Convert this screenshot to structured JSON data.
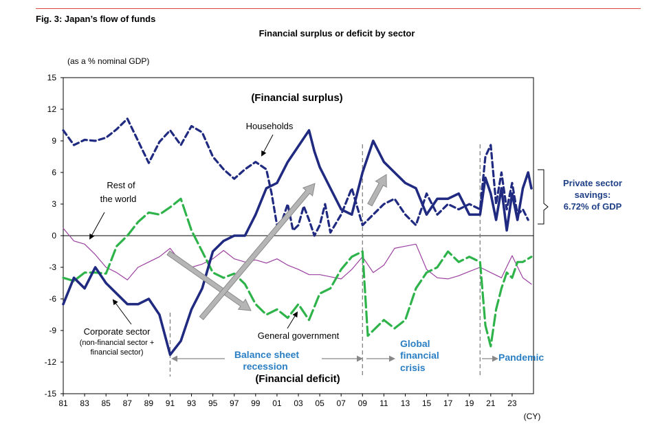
{
  "figure_title": "Fig. 3: Japan’s flow of funds",
  "chart_data": {
    "type": "line",
    "title": "Financial surplus or deficit by sector",
    "unit_label": "(as a % nominal GDP)",
    "xlabel": "(CY)",
    "ylim": [
      -15,
      15
    ],
    "xlim": [
      1981,
      2025
    ],
    "y_ticks": [
      "15",
      "12",
      "9",
      "6",
      "3",
      "0",
      "-3",
      "-6",
      "-9",
      "-12",
      "-15"
    ],
    "x_ticks": [
      "81",
      "83",
      "85",
      "87",
      "89",
      "91",
      "93",
      "95",
      "97",
      "99",
      "01",
      "03",
      "05",
      "07",
      "09",
      "11",
      "13",
      "15",
      "17",
      "19",
      "21",
      "23"
    ],
    "grid": false,
    "series": [
      {
        "name": "Households",
        "color": "#1f2a80",
        "style": "dashed",
        "x": [
          1981,
          1982,
          1983,
          1984,
          1985,
          1986,
          1987,
          1988,
          1989,
          1990,
          1991,
          1992,
          1993,
          1994,
          1995,
          1996,
          1997,
          1998,
          1999,
          2000,
          2000.5,
          2001,
          2001.5,
          2002,
          2002.5,
          2003,
          2003.5,
          2004,
          2004.5,
          2005,
          2005.5,
          2006,
          2007,
          2008,
          2009,
          2010,
          2011,
          2012,
          2013,
          2014,
          2015,
          2016,
          2017,
          2018,
          2019,
          2020,
          2020.5,
          2021,
          2021.5,
          2022,
          2022.5,
          2023,
          2023.5,
          2024,
          2024.5
        ],
        "y": [
          10.0,
          8.6,
          9.1,
          9.0,
          9.3,
          10.1,
          11.1,
          9.0,
          6.9,
          8.9,
          10.0,
          8.6,
          10.4,
          9.8,
          7.5,
          6.3,
          5.4,
          6.3,
          7.0,
          6.3,
          4.0,
          1.0,
          1.5,
          3.0,
          0.5,
          1.0,
          2.8,
          1.5,
          0.0,
          1.0,
          3.0,
          0.3,
          2.0,
          4.5,
          1.0,
          2.0,
          3.0,
          3.5,
          2.0,
          1.0,
          4.0,
          2.0,
          3.0,
          2.5,
          3.0,
          2.5,
          7.5,
          8.6,
          3.0,
          6.0,
          2.5,
          5.0,
          2.0,
          2.5,
          1.5
        ]
      },
      {
        "name": "Rest of the world",
        "color": "#9a3fa0",
        "style": "thin",
        "x": [
          1981,
          1982,
          1983,
          1984,
          1985,
          1986,
          1987,
          1988,
          1989,
          1990,
          1991,
          1992,
          1993,
          1994,
          1995,
          1996,
          1997,
          1998,
          1999,
          2000,
          2001,
          2002,
          2003,
          2004,
          2005,
          2006,
          2007,
          2008,
          2009,
          2010,
          2011,
          2012,
          2013,
          2014,
          2015,
          2016,
          2017,
          2018,
          2019,
          2020,
          2021,
          2022,
          2023,
          2024,
          2024.8
        ],
        "y": [
          0.7,
          -0.5,
          -0.8,
          -1.8,
          -3.0,
          -3.5,
          -4.2,
          -3.0,
          -2.5,
          -2.0,
          -1.2,
          -2.5,
          -3.0,
          -2.7,
          -2.2,
          -1.4,
          -2.2,
          -2.5,
          -2.3,
          -2.6,
          -2.2,
          -2.8,
          -3.2,
          -3.7,
          -3.7,
          -3.9,
          -4.1,
          -3.2,
          -2.0,
          -3.5,
          -2.8,
          -1.2,
          -1.0,
          -0.8,
          -3.2,
          -4.0,
          -4.1,
          -3.8,
          -3.4,
          -3.0,
          -3.5,
          -4.0,
          -1.9,
          -4.0,
          -4.6
        ]
      },
      {
        "name": "General government",
        "color": "#2eb34a",
        "style": "longdash",
        "x": [
          1981,
          1982,
          1983,
          1984,
          1985,
          1986,
          1987,
          1988,
          1989,
          1990,
          1991,
          1992,
          1993,
          1994,
          1995,
          1996,
          1997,
          1998,
          1999,
          2000,
          2001,
          2002,
          2003,
          2004,
          2005,
          2006,
          2007,
          2008,
          2009,
          2009.5,
          2010,
          2011,
          2012,
          2013,
          2014,
          2015,
          2016,
          2017,
          2018,
          2019,
          2020,
          2020.5,
          2021,
          2021.5,
          2022,
          2022.5,
          2023,
          2023.5,
          2024,
          2024.8
        ],
        "y": [
          -4.0,
          -4.3,
          -3.5,
          -3.5,
          -3.6,
          -1.0,
          0.0,
          1.3,
          2.2,
          2.0,
          2.7,
          3.5,
          0.5,
          -1.5,
          -3.5,
          -4.0,
          -3.6,
          -4.6,
          -6.5,
          -7.5,
          -7.0,
          -7.8,
          -6.5,
          -8.0,
          -5.5,
          -5.0,
          -3.2,
          -2.0,
          -1.5,
          -9.5,
          -9.0,
          -8.0,
          -8.8,
          -8.0,
          -5.0,
          -3.5,
          -3.0,
          -1.5,
          -2.5,
          -2.0,
          -2.5,
          -8.5,
          -10.5,
          -7.0,
          -5.0,
          -3.5,
          -4.0,
          -2.5,
          -2.5,
          -2.0
        ]
      },
      {
        "name": "Corporate sector",
        "color": "#1f2a80",
        "style": "thick",
        "x": [
          1981,
          1982,
          1983,
          1984,
          1985,
          1986,
          1987,
          1988,
          1989,
          1990,
          1991,
          1992,
          1993,
          1994,
          1995,
          1996,
          1997,
          1998,
          1999,
          2000,
          2001,
          2002,
          2003,
          2004,
          2004.5,
          2005,
          2006,
          2007,
          2008,
          2009,
          2010,
          2010.5,
          2011,
          2012,
          2013,
          2014,
          2015,
          2016,
          2017,
          2018,
          2019,
          2020,
          2020.5,
          2021,
          2021.5,
          2022,
          2022.5,
          2023,
          2023.5,
          2024,
          2024.5,
          2024.8
        ],
        "y": [
          -6.5,
          -4.0,
          -5.0,
          -3.0,
          -4.5,
          -5.5,
          -6.5,
          -6.5,
          -6.0,
          -7.5,
          -11.3,
          -10.0,
          -7.0,
          -5.0,
          -1.5,
          -0.5,
          0.0,
          0.0,
          2.0,
          4.5,
          5.0,
          7.0,
          8.5,
          10.0,
          8.0,
          6.5,
          4.5,
          2.5,
          2.0,
          6.0,
          9.0,
          8.0,
          7.0,
          6.0,
          5.0,
          4.5,
          2.0,
          3.5,
          3.5,
          4.0,
          2.0,
          2.0,
          5.5,
          4.0,
          1.5,
          4.5,
          0.5,
          4.0,
          1.5,
          4.5,
          6.0,
          4.5
        ]
      }
    ],
    "annotations": {
      "surplus": "(Financial surplus)",
      "deficit": "(Financial deficit)",
      "households": "Households",
      "rest_of_world_1": "Rest of",
      "rest_of_world_2": "the world",
      "corporate_1": "Corporate sector",
      "corporate_2": "(non-financial sector +",
      "corporate_3": "financial sector)",
      "general_gov": "General government",
      "bsr_1": "Balance sheet",
      "bsr_2": "recession",
      "gfc_1": "Global",
      "gfc_2": "financial",
      "gfc_3": "crisis",
      "pandemic": "Pandemic",
      "pss_1": "Private sector",
      "pss_2": "savings:",
      "pss_3": "6.72% of GDP"
    }
  }
}
